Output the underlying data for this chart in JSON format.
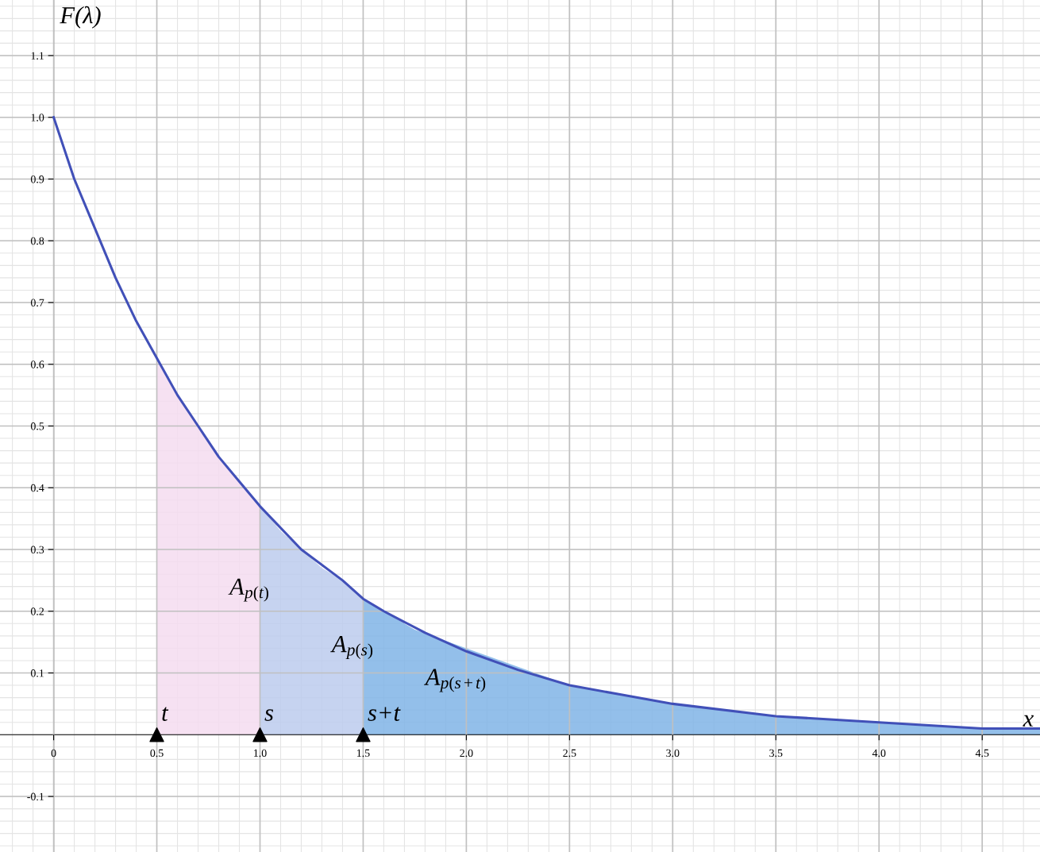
{
  "chart_data": {
    "type": "line",
    "xlabel": "x",
    "ylabel": "F(λ)",
    "xlim": [
      -0.26,
      4.78
    ],
    "ylim": [
      -0.19,
      1.19
    ],
    "xticks": [
      {
        "value": 0,
        "label": "0"
      },
      0.5,
      {
        "value": 1,
        "label": "1.0"
      },
      1.5,
      {
        "value": 2,
        "label": "2.0"
      },
      2.5,
      {
        "value": 3,
        "label": "3.0"
      },
      3.5,
      {
        "value": 4,
        "label": "4.0"
      },
      4.5
    ],
    "yticks": [
      -0.1,
      0.1,
      0.2,
      0.3,
      0.4,
      0.5,
      0.6,
      0.7,
      0.8,
      0.9,
      {
        "value": 1,
        "label": "1.0"
      },
      1.1
    ],
    "grid": true,
    "series": [
      {
        "type": "area",
        "color": "#f5dcf0",
        "x": [
          0.5,
          0.6,
          0.7,
          0.8,
          0.9,
          1.0
        ],
        "values": [
          0.61,
          0.55,
          0.5,
          0.45,
          0.41,
          0.37
        ]
      },
      {
        "type": "area",
        "color": "#bccbed",
        "x": [
          1.0,
          1.1,
          1.2,
          1.3,
          1.4,
          1.5
        ],
        "values": [
          0.37,
          0.33,
          0.3,
          0.27,
          0.25,
          0.22
        ]
      },
      {
        "type": "area",
        "color": "#80b4e6",
        "x": [
          1.5,
          1.75,
          2.0,
          2.25,
          2.5,
          3.0,
          3.5,
          4.0,
          4.5,
          4.78
        ],
        "values": [
          0.22,
          0.17,
          0.14,
          0.11,
          0.08,
          0.05,
          0.03,
          0.02,
          0.01,
          0.01
        ]
      },
      {
        "color": "#4150b8",
        "x": [
          0,
          0.1,
          0.2,
          0.3,
          0.4,
          0.5,
          0.6,
          0.7,
          0.8,
          0.9,
          1.0,
          1.2,
          1.4,
          1.5,
          1.6,
          1.8,
          2.0,
          2.25,
          2.5,
          2.75,
          3.0,
          3.5,
          4.0,
          4.5,
          4.78
        ],
        "values": [
          1.0,
          0.9,
          0.82,
          0.74,
          0.67,
          0.61,
          0.55,
          0.5,
          0.45,
          0.41,
          0.37,
          0.3,
          0.25,
          0.22,
          0.2,
          0.165,
          0.135,
          0.105,
          0.08,
          0.065,
          0.05,
          0.03,
          0.02,
          0.01,
          0.01
        ]
      },
      {
        "type": "scatter",
        "color": "#000000",
        "marker": "triangle",
        "x": [
          0.5,
          1.0,
          1.5
        ],
        "values": [
          0,
          0,
          0
        ]
      }
    ],
    "annotations": [
      "A$_{p(t)}$",
      "A$_{p(s)}$",
      "A$_{p(s+t)}$",
      "t",
      "s",
      "s+t"
    ]
  }
}
